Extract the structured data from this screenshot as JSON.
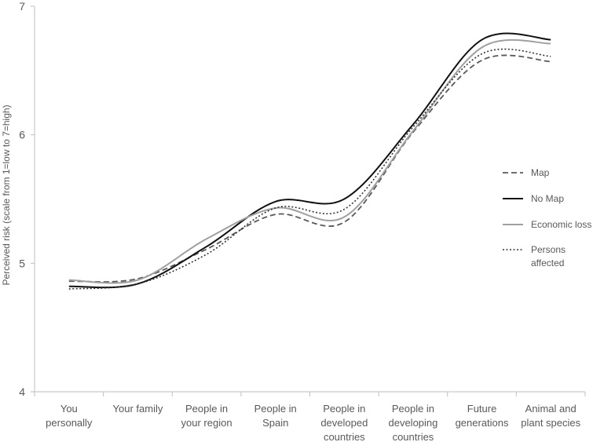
{
  "chart_data": {
    "type": "line",
    "title": "",
    "xlabel": "",
    "ylabel": "Perceived risk (scale from 1=low to 7=high)",
    "ylim": [
      4,
      7
    ],
    "yticks": [
      4,
      5,
      6,
      7
    ],
    "grid": false,
    "legend_position": "right",
    "categories": [
      [
        "You",
        "personally"
      ],
      [
        "Your family"
      ],
      [
        "People in",
        "your region"
      ],
      [
        "People in",
        "Spain"
      ],
      [
        "People in",
        "developed",
        "countries"
      ],
      [
        "People in",
        "developing",
        "countries"
      ],
      [
        "Future",
        "generations"
      ],
      [
        "Animal and",
        "plant species"
      ]
    ],
    "series": [
      {
        "name": [
          "Map"
        ],
        "style": "dashed",
        "color": "#595959",
        "width": 1.8,
        "values": [
          4.86,
          4.88,
          5.11,
          5.38,
          5.32,
          6.02,
          6.58,
          6.57
        ]
      },
      {
        "name": [
          "No Map"
        ],
        "style": "solid",
        "color": "#111111",
        "width": 2.0,
        "values": [
          4.82,
          4.84,
          5.13,
          5.48,
          5.5,
          6.08,
          6.74,
          6.74
        ]
      },
      {
        "name": [
          "Economic loss"
        ],
        "style": "solid",
        "color": "#a0a0a0",
        "width": 2.0,
        "values": [
          4.87,
          4.87,
          5.19,
          5.43,
          5.36,
          6.03,
          6.68,
          6.71
        ]
      },
      {
        "name": [
          "Persons",
          "affected"
        ],
        "style": "dotted",
        "color": "#333333",
        "width": 1.6,
        "values": [
          4.8,
          4.84,
          5.07,
          5.43,
          5.42,
          6.06,
          6.63,
          6.61
        ]
      }
    ]
  }
}
